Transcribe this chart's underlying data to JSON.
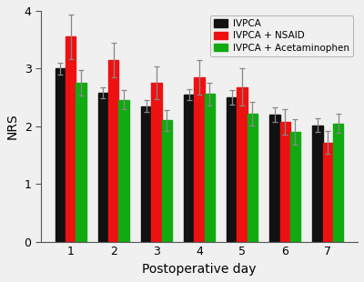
{
  "days": [
    1,
    2,
    3,
    4,
    5,
    6,
    7
  ],
  "ivpca_values": [
    3.0,
    2.58,
    2.35,
    2.55,
    2.5,
    2.2,
    2.02
  ],
  "ivpca_nsaid_values": [
    3.55,
    3.15,
    2.75,
    2.85,
    2.68,
    2.08,
    1.72
  ],
  "ivpca_aceta_values": [
    2.76,
    2.46,
    2.1,
    2.56,
    2.22,
    1.9,
    2.05
  ],
  "ivpca_errors": [
    0.1,
    0.1,
    0.1,
    0.1,
    0.12,
    0.12,
    0.12
  ],
  "ivpca_nsaid_errors": [
    0.38,
    0.3,
    0.28,
    0.3,
    0.32,
    0.22,
    0.2
  ],
  "ivpca_aceta_errors": [
    0.22,
    0.16,
    0.18,
    0.2,
    0.2,
    0.22,
    0.16
  ],
  "bar_colors": [
    "#111111",
    "#ee1111",
    "#11aa11"
  ],
  "legend_labels": [
    "IVPCA",
    "IVPCA + NSAID",
    "IVPCA + Acetaminophen"
  ],
  "ylabel": "NRS",
  "xlabel": "Postoperative day",
  "ylim": [
    0,
    4
  ],
  "yticks": [
    0,
    1,
    2,
    3,
    4
  ],
  "bar_width": 0.24,
  "figsize": [
    4.0,
    3.1
  ],
  "dpi": 100,
  "background_color": "#f0f0f0",
  "axes_background": "#f0f0f0",
  "error_color": "#888888"
}
